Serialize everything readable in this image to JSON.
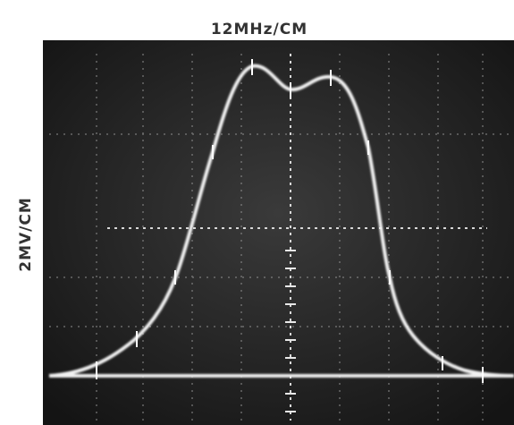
{
  "labels": {
    "horizontal": "12MHz/CM",
    "vertical": "2MV/CM"
  }
}
